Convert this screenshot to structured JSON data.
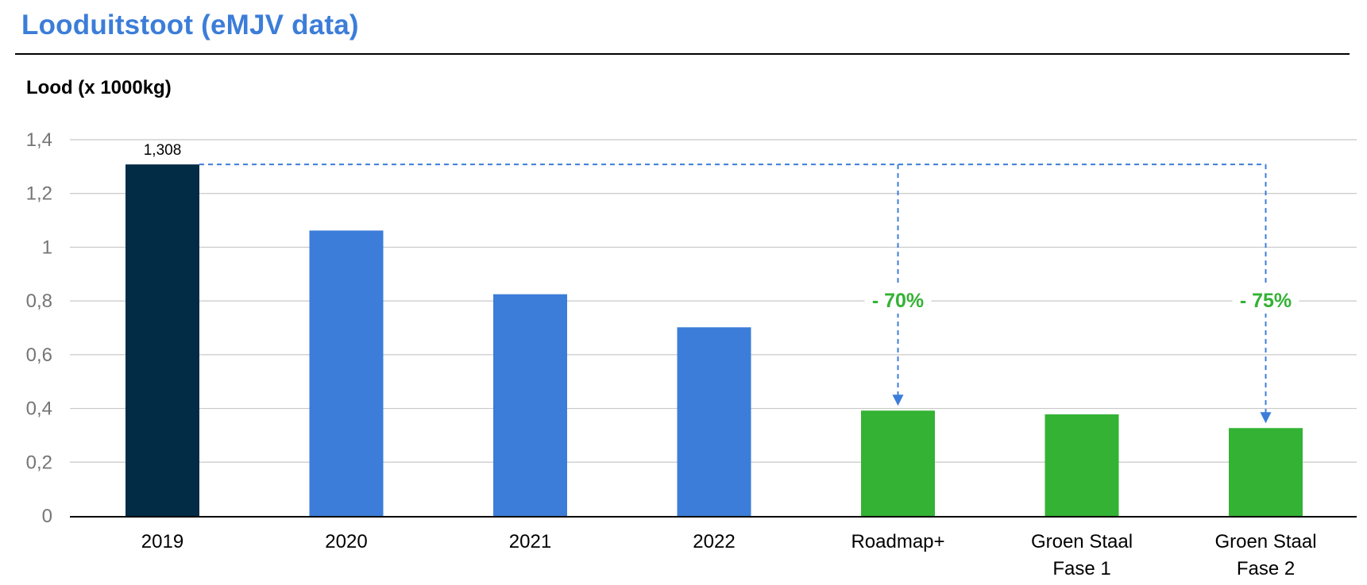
{
  "title": "Looduitstoot (eMJV data)",
  "colors": {
    "title": "#3c7dd9",
    "dark_bar": "#022b45",
    "blue_bar": "#3c7dd9",
    "green_bar": "#33b234",
    "arrow": "#3c7dd9",
    "annotation": "#33b234",
    "gridline": "#c8c8c8"
  },
  "chart_data": {
    "type": "bar",
    "ylabel": "Lood (x 1000kg)",
    "ylim": [
      0,
      1.4
    ],
    "yticks": [
      {
        "value": 0,
        "label": "0"
      },
      {
        "value": 0.2,
        "label": "0,2"
      },
      {
        "value": 0.4,
        "label": "0,4"
      },
      {
        "value": 0.6,
        "label": "0,6"
      },
      {
        "value": 0.8,
        "label": "0,8"
      },
      {
        "value": 1.0,
        "label": "1"
      },
      {
        "value": 1.2,
        "label": "1,2"
      },
      {
        "value": 1.4,
        "label": "1,4"
      }
    ],
    "grid": true,
    "bars": [
      {
        "category": [
          "2019"
        ],
        "value": 1.308,
        "color": "#022b45",
        "label": "1,308"
      },
      {
        "category": [
          "2020"
        ],
        "value": 1.062,
        "color": "#3c7dd9"
      },
      {
        "category": [
          "2021"
        ],
        "value": 0.825,
        "color": "#3c7dd9"
      },
      {
        "category": [
          "2022"
        ],
        "value": 0.702,
        "color": "#3c7dd9"
      },
      {
        "category": [
          "Roadmap+"
        ],
        "value": 0.392,
        "color": "#33b234"
      },
      {
        "category": [
          "Groen Staal",
          "Fase 1"
        ],
        "value": 0.378,
        "color": "#33b234"
      },
      {
        "category": [
          "Groen Staal",
          "Fase 2"
        ],
        "value": 0.327,
        "color": "#33b234"
      }
    ],
    "annotations": [
      {
        "text": "- 70%",
        "from_value": 1.308,
        "to_bar": 4
      },
      {
        "text": "- 75%",
        "from_value": 1.308,
        "to_bar": 6
      }
    ]
  }
}
